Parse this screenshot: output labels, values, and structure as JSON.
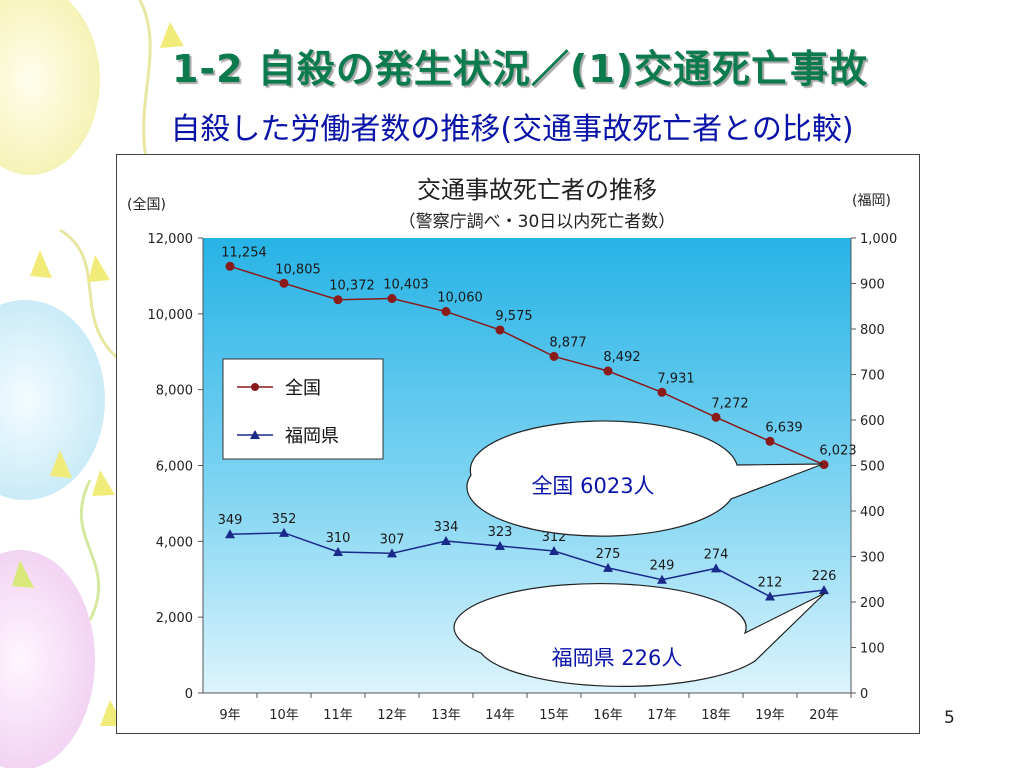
{
  "slide": {
    "title": "1-2 自殺の発生状況／(1)交通死亡事故",
    "subtitle": "自殺した労働者数の推移(交通事故死亡者との比較)",
    "page_number": "5"
  },
  "chart_data": {
    "type": "line",
    "title": "交通事故死亡者の推移",
    "subtitle": "（警察庁調べ・30日以内死亡者数）",
    "left_axis_unit": "(全国)",
    "right_axis_unit": "(福岡)",
    "categories": [
      "9年",
      "10年",
      "11年",
      "12年",
      "13年",
      "14年",
      "15年",
      "16年",
      "17年",
      "18年",
      "19年",
      "20年"
    ],
    "left_ticks": [
      "0",
      "2,000",
      "4,000",
      "6,000",
      "8,000",
      "10,000",
      "12,000"
    ],
    "right_ticks": [
      "0",
      "100",
      "200",
      "300",
      "400",
      "500",
      "600",
      "700",
      "800",
      "900",
      "1,000"
    ],
    "ylim_left": [
      0,
      12000
    ],
    "ylim_right": [
      0,
      1000
    ],
    "legend_position": "left",
    "series": [
      {
        "name": "全国",
        "axis": "left",
        "marker": "circle",
        "color": "#8b1a1a",
        "values": [
          11254,
          10805,
          10372,
          10403,
          10060,
          9575,
          8877,
          8492,
          7931,
          7272,
          6639,
          6023
        ],
        "labels": [
          "11,254",
          "10,805",
          "10,372",
          "10,403",
          "10,060",
          "9,575",
          "8,877",
          "8,492",
          "7,931",
          "7,272",
          "6,639",
          "6,023"
        ]
      },
      {
        "name": "福岡県",
        "axis": "right",
        "marker": "triangle",
        "color": "#1a2a8b",
        "values": [
          349,
          352,
          310,
          307,
          334,
          323,
          312,
          275,
          249,
          274,
          212,
          226
        ],
        "labels": [
          "349",
          "352",
          "310",
          "307",
          "334",
          "323",
          "312",
          "275",
          "249",
          "274",
          "212",
          "226"
        ]
      }
    ],
    "callouts": [
      {
        "text": "全国 6023人",
        "target_series": 0,
        "target_index": 11
      },
      {
        "text": "福岡県 226人",
        "target_series": 1,
        "target_index": 11
      }
    ]
  }
}
